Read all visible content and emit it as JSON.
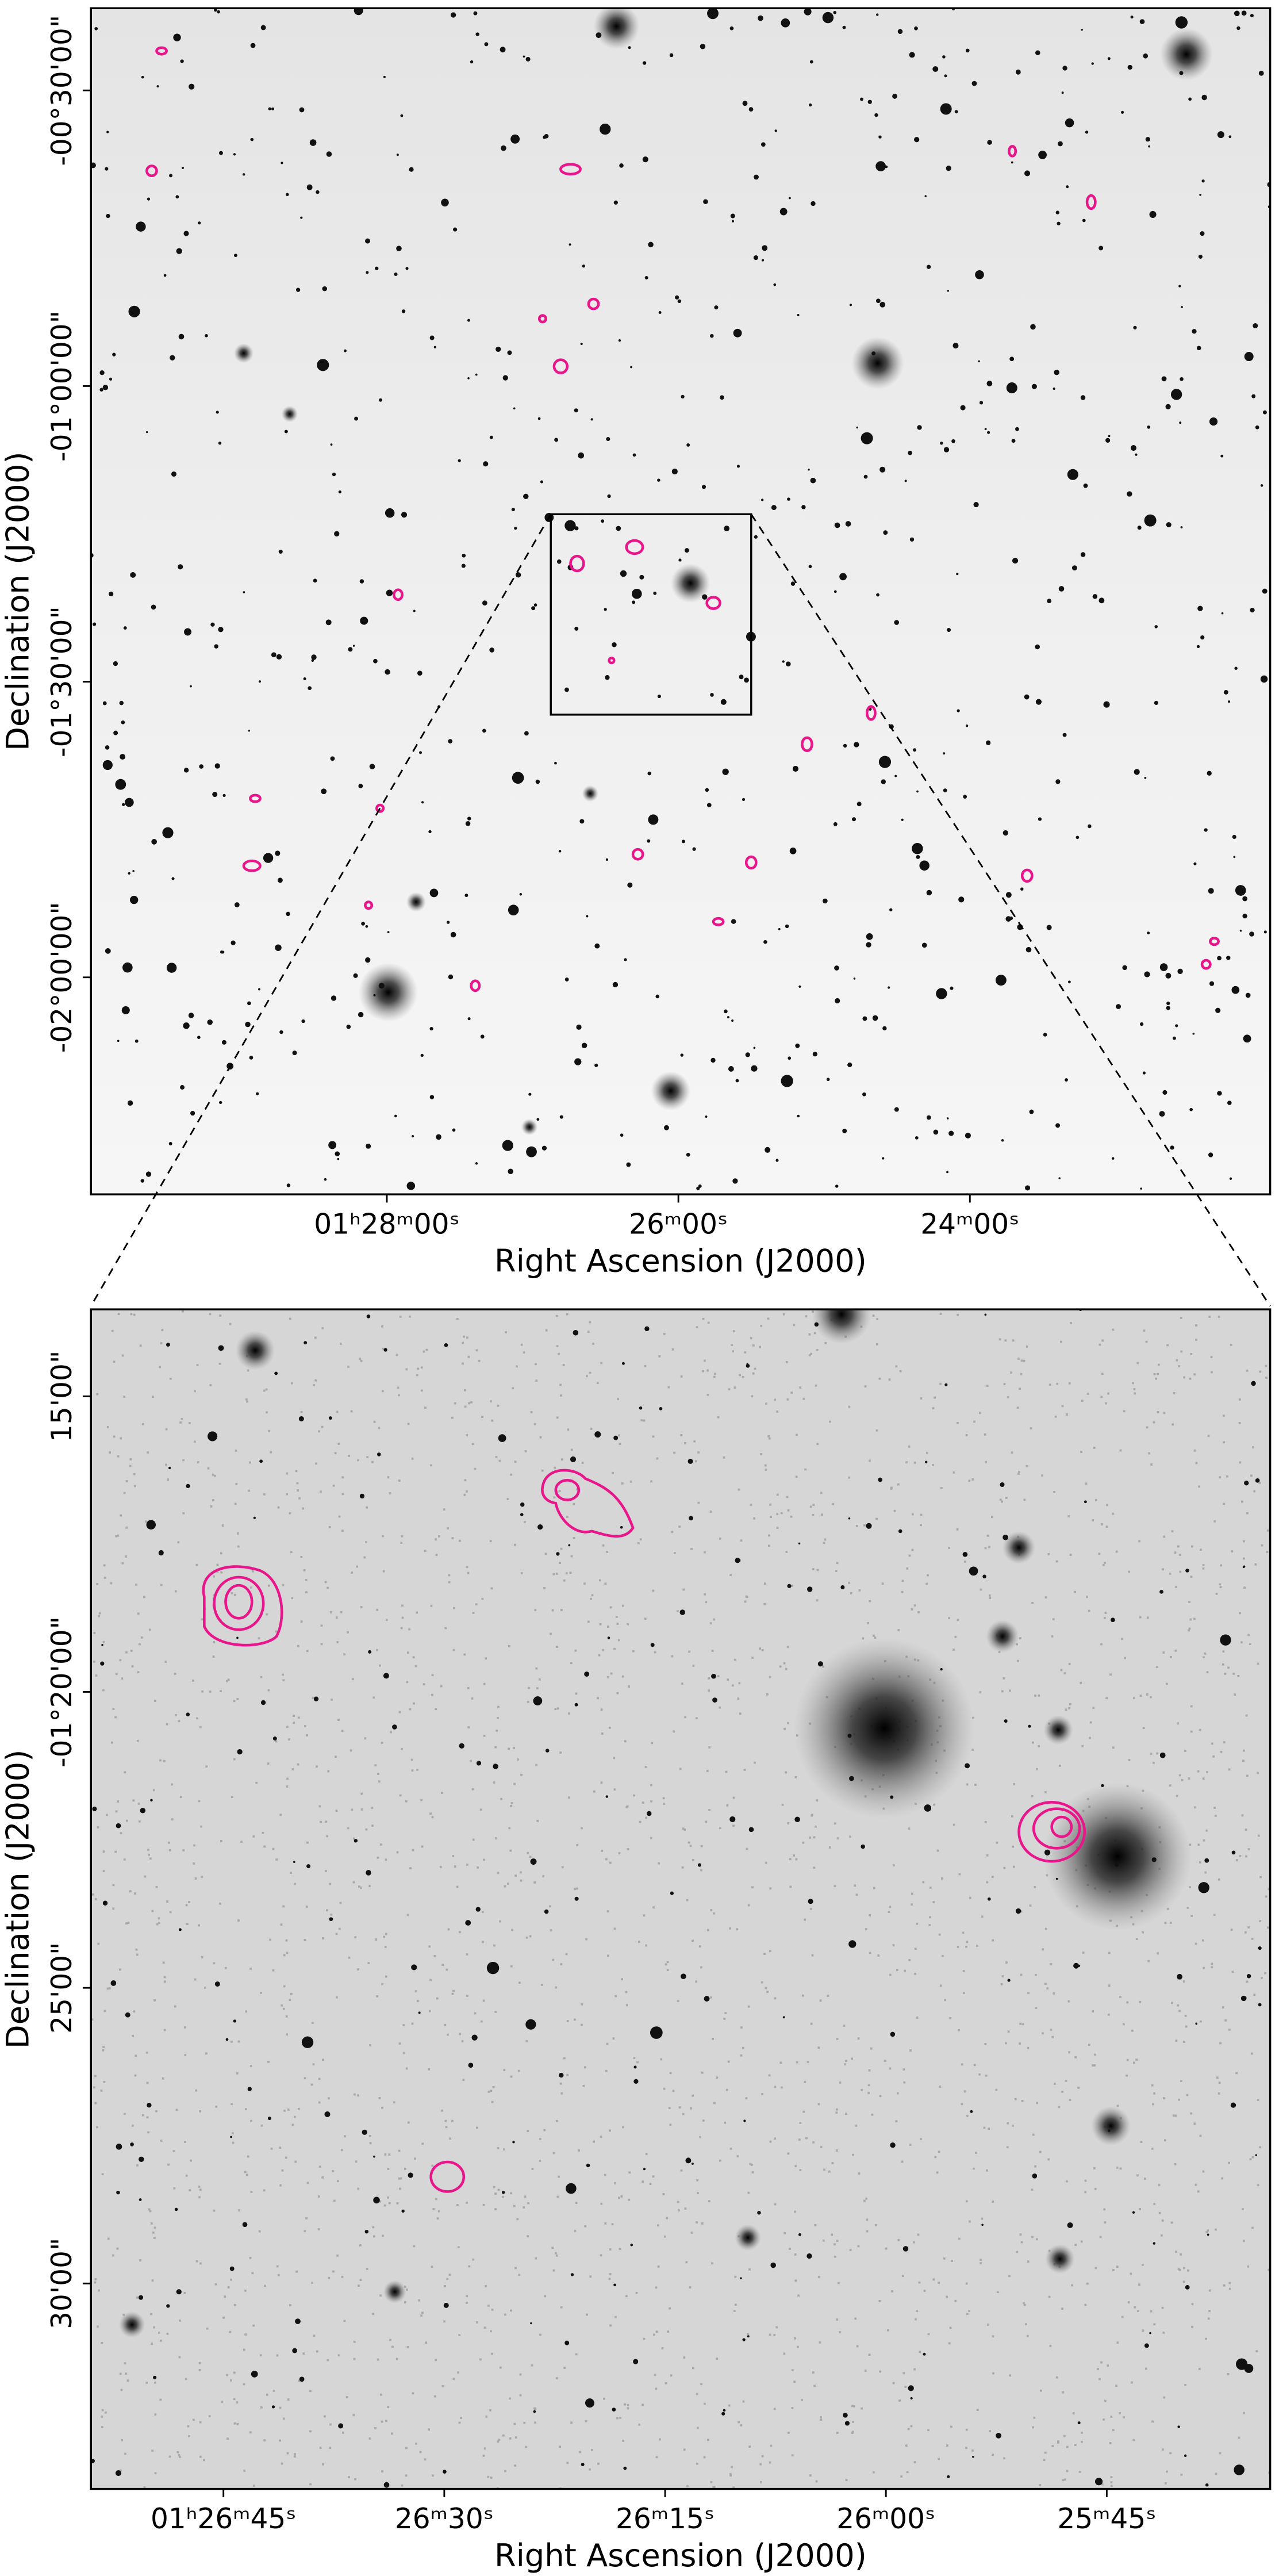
{
  "chart_data": [
    {
      "type": "image",
      "xlabel": "Right Ascension (J2000)",
      "ylabel": "Declination (J2000)",
      "xlim": [
        30.03,
        21.94
      ],
      "ylim": [
        -2.367,
        -0.361
      ],
      "xticks": [
        {
          "value": 28,
          "label": "01ʰ28ᵐ00ˢ"
        },
        {
          "value": 26,
          "label": "26ᵐ00ˢ"
        },
        {
          "value": 24,
          "label": "24ᵐ00ˢ"
        }
      ],
      "yticks": [
        {
          "value": -0.5,
          "label": "-00°30'00\""
        },
        {
          "value": -1.0,
          "label": "-01°00'00\""
        },
        {
          "value": -1.5,
          "label": "-01°30'00\""
        },
        {
          "value": -2.0,
          "label": "-02°00'00\""
        }
      ]
    },
    {
      "type": "image",
      "xlabel": "Right Ascension (J2000)",
      "ylabel": "Declination (J2000)",
      "xlim": [
        26.9,
        25.565
      ],
      "ylim": [
        -1.5579,
        -1.2255
      ],
      "xticks": [
        {
          "value": 26.75,
          "label": "01ʰ26ᵐ45ˢ"
        },
        {
          "value": 26.5,
          "label": "26ᵐ30ˢ"
        },
        {
          "value": 26.25,
          "label": "26ᵐ15ˢ"
        },
        {
          "value": 26,
          "label": "26ᵐ00ˢ"
        },
        {
          "value": 25.75,
          "label": "25ᵐ45ˢ"
        }
      ],
      "yticks": [
        {
          "value": -1.25,
          "label": "15'00\""
        },
        {
          "value": -1.3333,
          "label": "-01°20'00\""
        },
        {
          "value": -1.4167,
          "label": "25'00\""
        },
        {
          "value": -1.5,
          "label": "30'00\""
        }
      ]
    }
  ]
}
